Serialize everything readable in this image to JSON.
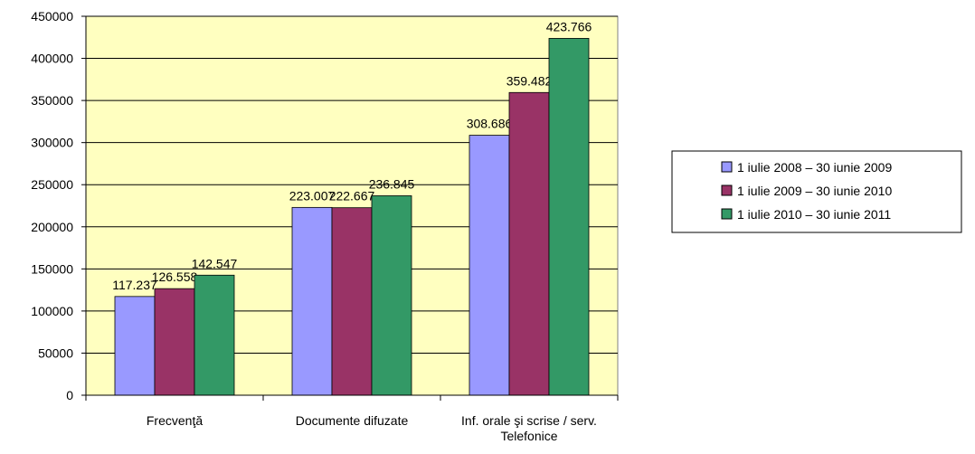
{
  "chart_data": {
    "type": "bar",
    "categories": [
      "Frecvenţă",
      "Documente difuzate",
      "Inf. orale şi scrise / serv. Telefonice"
    ],
    "series": [
      {
        "name": "1 iulie 2008 – 30 iunie 2009",
        "color": "#9999ff",
        "values": [
          117237,
          223007,
          308686
        ],
        "value_labels": [
          "117.237",
          "223.007",
          "308.686"
        ]
      },
      {
        "name": "1 iulie 2009 – 30 iunie 2010",
        "color": "#993366",
        "values": [
          126558,
          222667,
          359482
        ],
        "value_labels": [
          "126.558",
          "222.667",
          "359.482"
        ]
      },
      {
        "name": "1 iulie 2010 – 30 iunie 2011",
        "color": "#339966",
        "values": [
          142547,
          236845,
          423766
        ],
        "value_labels": [
          "142.547",
          "236.845",
          "423.766"
        ]
      }
    ],
    "ylim": [
      0,
      450000
    ],
    "yticks": [
      0,
      50000,
      100000,
      150000,
      200000,
      250000,
      300000,
      350000,
      400000,
      450000
    ],
    "grid": true,
    "legend": "right",
    "background": "#ffffc0"
  }
}
